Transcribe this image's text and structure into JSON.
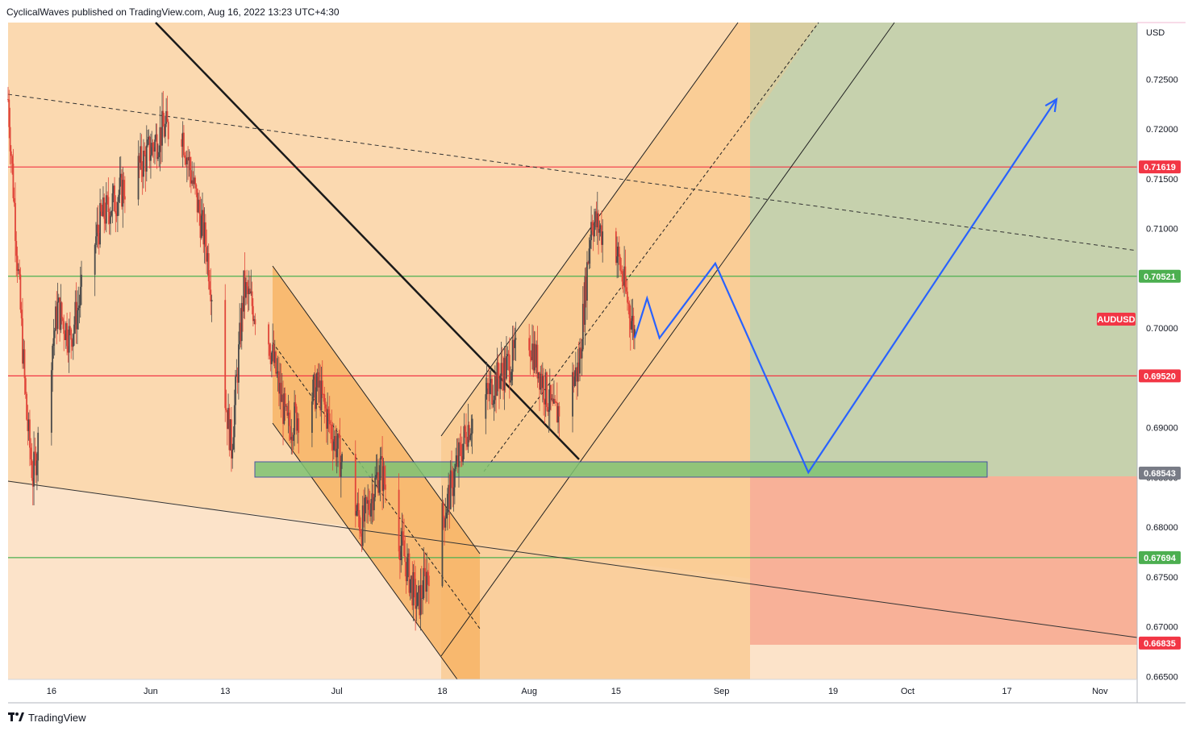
{
  "header": {
    "publisher": "CyclicalWaves published on TradingView.com, Aug 16, 2022 13:23 UTC+4:30"
  },
  "footer": {
    "brand": "TradingView",
    "logo_icon": "tradingview-logo-icon"
  },
  "colors": {
    "candle_up": "#4a4a4a",
    "candle_down": "#e0463a",
    "channel_fill": "#f9c88e",
    "flag_fill": "#f7b466",
    "green_zone": "#c6d1ad",
    "red_zone": "#f7a88f",
    "support_box": "#7fc374",
    "projection_line": "#2962ff",
    "red_level": "#f23645",
    "green_level": "#4caf50"
  },
  "chart_data": {
    "type": "candlestick",
    "symbol": "AUDUSD",
    "currency": "USD",
    "y_range": [
      0.6647,
      0.7307
    ],
    "x_range": [
      "2022-05-09",
      "2022-11-07"
    ],
    "x_ticks": [
      {
        "date": "2022-05-16",
        "label": "16"
      },
      {
        "date": "2022-06-01",
        "label": "Jun"
      },
      {
        "date": "2022-06-13",
        "label": "13"
      },
      {
        "date": "2022-07-01",
        "label": "Jul"
      },
      {
        "date": "2022-07-18",
        "label": "18"
      },
      {
        "date": "2022-08-01",
        "label": "Aug"
      },
      {
        "date": "2022-08-15",
        "label": "15"
      },
      {
        "date": "2022-09-01",
        "label": "Sep"
      },
      {
        "date": "2022-09-19",
        "label": "19"
      },
      {
        "date": "2022-10-01",
        "label": "Oct"
      },
      {
        "date": "2022-10-17",
        "label": "17"
      },
      {
        "date": "2022-11-01",
        "label": "Nov"
      }
    ],
    "y_ticks": [
      "0.72500",
      "0.72000",
      "0.71500",
      "0.71000",
      "0.70500",
      "0.70000",
      "0.69500",
      "0.69000",
      "0.68500",
      "0.68000",
      "0.67500",
      "0.67000",
      "0.66500"
    ],
    "price_tags": [
      {
        "label": "0.71619",
        "value": 0.71619,
        "color": "#f23645"
      },
      {
        "label": "0.70521",
        "value": 0.70521,
        "color": "#4caf50"
      },
      {
        "label": "0.69520",
        "value": 0.6952,
        "color": "#f23645"
      },
      {
        "label": "0.68543",
        "value": 0.68543,
        "color": "#787b86"
      },
      {
        "label": "0.67694",
        "value": 0.67694,
        "color": "#4caf50"
      },
      {
        "label": "0.66835",
        "value": 0.66835,
        "color": "#f23645"
      }
    ],
    "symbol_tag": {
      "label": "AUDUSD",
      "value": 0.7009,
      "color": "#f23645"
    },
    "horizontal_levels": [
      {
        "value": 0.71619,
        "color": "#f23645"
      },
      {
        "value": 0.70521,
        "color": "#4caf50"
      },
      {
        "value": 0.6952,
        "color": "#f23645"
      },
      {
        "value": 0.67694,
        "color": "#4caf50"
      }
    ],
    "price_path": [
      {
        "date": "2022-05-09",
        "value": 0.723
      },
      {
        "date": "2022-05-12",
        "value": 0.691
      },
      {
        "date": "2022-05-13",
        "value": 0.685
      },
      {
        "date": "2022-05-17",
        "value": 0.702
      },
      {
        "date": "2022-05-19",
        "value": 0.699
      },
      {
        "date": "2022-05-24",
        "value": 0.711
      },
      {
        "date": "2022-05-31",
        "value": 0.717
      },
      {
        "date": "2022-06-03",
        "value": 0.72
      },
      {
        "date": "2022-06-06",
        "value": 0.72
      },
      {
        "date": "2022-06-10",
        "value": 0.708
      },
      {
        "date": "2022-06-14",
        "value": 0.688
      },
      {
        "date": "2022-06-16",
        "value": 0.704
      },
      {
        "date": "2022-06-20",
        "value": 0.699
      },
      {
        "date": "2022-06-23",
        "value": 0.69
      },
      {
        "date": "2022-06-28",
        "value": 0.694
      },
      {
        "date": "2022-07-05",
        "value": 0.68
      },
      {
        "date": "2022-07-08",
        "value": 0.686
      },
      {
        "date": "2022-07-14",
        "value": 0.672
      },
      {
        "date": "2022-07-19",
        "value": 0.683
      },
      {
        "date": "2022-07-22",
        "value": 0.69
      },
      {
        "date": "2022-07-27",
        "value": 0.695
      },
      {
        "date": "2022-08-01",
        "value": 0.699
      },
      {
        "date": "2022-08-05",
        "value": 0.691
      },
      {
        "date": "2022-08-09",
        "value": 0.696
      },
      {
        "date": "2022-08-11",
        "value": 0.711
      },
      {
        "date": "2022-08-15",
        "value": 0.708
      },
      {
        "date": "2022-08-18",
        "value": 0.6995
      }
    ],
    "projection_path": [
      {
        "date": "2022-08-18",
        "value": 0.699
      },
      {
        "date": "2022-08-20",
        "value": 0.703
      },
      {
        "date": "2022-08-22",
        "value": 0.699
      },
      {
        "date": "2022-08-31",
        "value": 0.7065
      },
      {
        "date": "2022-09-15",
        "value": 0.6855
      },
      {
        "date": "2022-10-25",
        "value": 0.723
      }
    ]
  }
}
